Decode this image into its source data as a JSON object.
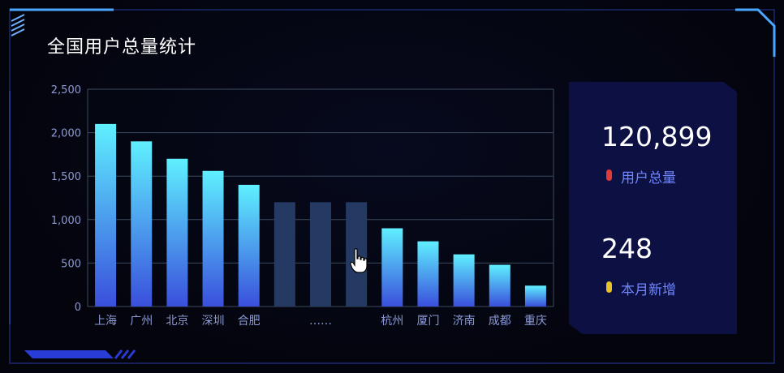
{
  "panel": {
    "title": "全国用户总量统计"
  },
  "stats": [
    {
      "value": "120,899",
      "label": "用户总量",
      "dot_color": "#e03a3a"
    },
    {
      "value": "248",
      "label": "本月新增",
      "dot_color": "#e8c22a"
    }
  ],
  "colors": {
    "bar_top": "#5ff0ff",
    "bar_bottom": "#3a4fdc",
    "placeholder_bar": "#243a63",
    "axis_text": "#8c9bd6",
    "grid": "#3c4a5e"
  },
  "chart_data": {
    "type": "bar",
    "categories": [
      "上海",
      "广州",
      "北京",
      "深圳",
      "合肥",
      "",
      "……",
      "",
      "杭州",
      "厦门",
      "济南",
      "成都",
      "重庆"
    ],
    "values": [
      2100,
      1900,
      1700,
      1560,
      1400,
      1200,
      1200,
      1200,
      900,
      750,
      600,
      480,
      240
    ],
    "placeholder_indices": [
      5,
      6,
      7
    ],
    "ylim": [
      0,
      2500
    ],
    "yticks": [
      0,
      500,
      1000,
      1500,
      2000,
      2500
    ],
    "ytick_labels": [
      "0",
      "500",
      "1,000",
      "1,500",
      "2,000",
      "2,500"
    ],
    "grid": true,
    "title": "",
    "xlabel": "",
    "ylabel": ""
  }
}
